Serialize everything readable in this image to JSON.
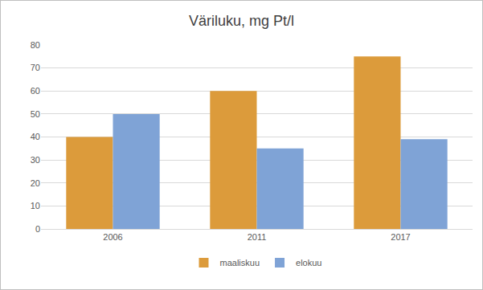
{
  "chart_data": {
    "type": "bar",
    "title": "Väriluku, mg Pt/l",
    "categories": [
      "2006",
      "2011",
      "2017"
    ],
    "series": [
      {
        "name": "maaliskuu",
        "color": "#DC9B3B",
        "values": [
          40,
          60,
          75
        ]
      },
      {
        "name": "elokuu",
        "color": "#7FA3D6",
        "values": [
          50,
          35,
          39
        ]
      }
    ],
    "ylim": [
      0,
      80
    ],
    "yticks": [
      0,
      10,
      20,
      30,
      40,
      50,
      60,
      70,
      80
    ],
    "grid": true,
    "legend": "bottom"
  }
}
